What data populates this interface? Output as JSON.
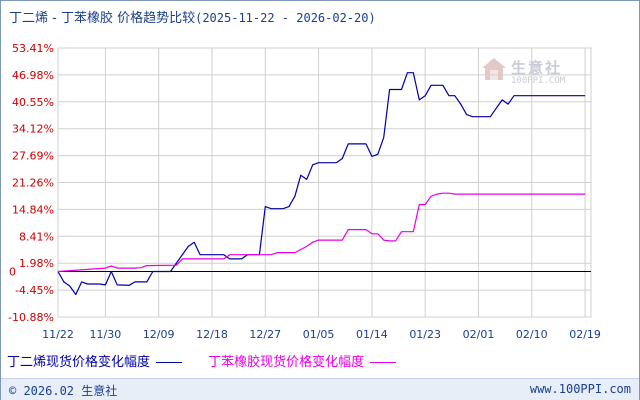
{
  "title": {
    "main": "丁二烯 - 丁苯橡胶 价格趋势比较",
    "range": "(2025-11-22 - 2026-02-20)"
  },
  "watermark": {
    "name": "生意社",
    "url": "100PPI.COM"
  },
  "footer": {
    "copyright": "© 2026.02 生意社",
    "site": "www.100PPI.com"
  },
  "colors": {
    "series1": "#0000aa",
    "series2": "#e600e6",
    "ytick": "#cc0000",
    "xtick": "#1a3f8f",
    "grid": "#d0d0d0",
    "axis": "#000000"
  },
  "chart_data": {
    "type": "line",
    "title": "丁二烯 - 丁苯橡胶 价格趋势比较",
    "ylabel": "",
    "xlabel": "",
    "yticks": [
      "53.41%",
      "46.98%",
      "40.55%",
      "34.12%",
      "27.69%",
      "21.26%",
      "14.84%",
      "8.41%",
      "1.98%",
      "-4.45%",
      "-10.88%"
    ],
    "ytick_values": [
      53.41,
      46.98,
      40.55,
      34.12,
      27.69,
      21.26,
      14.84,
      8.41,
      1.98,
      -4.45,
      -10.88
    ],
    "zero_label": "0",
    "ylim": [
      -10.88,
      53.41
    ],
    "xticks": [
      "11/22",
      "11/30",
      "12/09",
      "12/18",
      "12/27",
      "01/05",
      "01/14",
      "01/23",
      "02/01",
      "02/10",
      "02/19"
    ],
    "xtick_days": [
      0,
      8,
      17,
      26,
      35,
      44,
      53,
      62,
      71,
      80,
      89
    ],
    "xlim": [
      0,
      90
    ],
    "grid": true,
    "legend_position": "bottom",
    "series": [
      {
        "name": "丁二烯现货价格变化幅度",
        "points": [
          [
            0,
            0
          ],
          [
            1,
            -2.5
          ],
          [
            2,
            -3.5
          ],
          [
            3,
            -5.5
          ],
          [
            4,
            -2.5
          ],
          [
            5,
            -3
          ],
          [
            7,
            -3
          ],
          [
            8,
            -3.2
          ],
          [
            9,
            0
          ],
          [
            10,
            -3.2
          ],
          [
            12,
            -3.3
          ],
          [
            13,
            -2.5
          ],
          [
            15,
            -2.5
          ],
          [
            16,
            0
          ],
          [
            19,
            0
          ],
          [
            20,
            2
          ],
          [
            22,
            6
          ],
          [
            23,
            7
          ],
          [
            24,
            4
          ],
          [
            27,
            4
          ],
          [
            28,
            4
          ],
          [
            29,
            3
          ],
          [
            30,
            3
          ],
          [
            31,
            3
          ],
          [
            32,
            4
          ],
          [
            33,
            4
          ],
          [
            34,
            4
          ],
          [
            35,
            15.5
          ],
          [
            36,
            15
          ],
          [
            38,
            15
          ],
          [
            39,
            15.5
          ],
          [
            40,
            18
          ],
          [
            41,
            23
          ],
          [
            42,
            22
          ],
          [
            43,
            25.5
          ],
          [
            44,
            26
          ],
          [
            46,
            26
          ],
          [
            47,
            26
          ],
          [
            48,
            27
          ],
          [
            49,
            30.5
          ],
          [
            51,
            30.5
          ],
          [
            52,
            30.5
          ],
          [
            53,
            27.5
          ],
          [
            54,
            28
          ],
          [
            55,
            32
          ],
          [
            56,
            43.5
          ],
          [
            58,
            43.5
          ],
          [
            59,
            47.5
          ],
          [
            60,
            47.5
          ],
          [
            61,
            41
          ],
          [
            62,
            42
          ],
          [
            63,
            44.5
          ],
          [
            65,
            44.5
          ],
          [
            66,
            42
          ],
          [
            67,
            42
          ],
          [
            68,
            40
          ],
          [
            69,
            37.5
          ],
          [
            70,
            37
          ],
          [
            71,
            37
          ],
          [
            72,
            37
          ],
          [
            73,
            37
          ],
          [
            74,
            39
          ],
          [
            75,
            41
          ],
          [
            76,
            40
          ],
          [
            77,
            42
          ],
          [
            78,
            42
          ],
          [
            79,
            42
          ],
          [
            80,
            42
          ],
          [
            81,
            42
          ],
          [
            82,
            42
          ],
          [
            83,
            42
          ],
          [
            84,
            42
          ],
          [
            85,
            42
          ],
          [
            86,
            42
          ],
          [
            87,
            42
          ],
          [
            88,
            42
          ],
          [
            89,
            42
          ]
        ]
      },
      {
        "name": "丁苯橡胶现货价格变化幅度",
        "points": [
          [
            0,
            0
          ],
          [
            8,
            0.8
          ],
          [
            9,
            1.3
          ],
          [
            10,
            0.8
          ],
          [
            13,
            0.8
          ],
          [
            14,
            0.9
          ],
          [
            15,
            1.4
          ],
          [
            20,
            1.5
          ],
          [
            21,
            3
          ],
          [
            26,
            3
          ],
          [
            28,
            3
          ],
          [
            29,
            4
          ],
          [
            36,
            4
          ],
          [
            37,
            4.5
          ],
          [
            40,
            4.5
          ],
          [
            42,
            6
          ],
          [
            43,
            7
          ],
          [
            44,
            7.5
          ],
          [
            45,
            7.5
          ],
          [
            46,
            7.5
          ],
          [
            47,
            7.5
          ],
          [
            48,
            7.5
          ],
          [
            49,
            10
          ],
          [
            50,
            10
          ],
          [
            51,
            10
          ],
          [
            52,
            10
          ],
          [
            53,
            9
          ],
          [
            54,
            9
          ],
          [
            55,
            7.5
          ],
          [
            56,
            7.3
          ],
          [
            57,
            7.3
          ],
          [
            58,
            9.5
          ],
          [
            59,
            9.5
          ],
          [
            60,
            9.5
          ],
          [
            61,
            16
          ],
          [
            62,
            16
          ],
          [
            63,
            18
          ],
          [
            64,
            18.5
          ],
          [
            65,
            18.7
          ],
          [
            66,
            18.7
          ],
          [
            67,
            18.5
          ],
          [
            89,
            18.5
          ]
        ]
      }
    ]
  },
  "legend": {
    "series1": "丁二烯现货价格变化幅度",
    "series2": "丁苯橡胶现货价格变化幅度"
  }
}
